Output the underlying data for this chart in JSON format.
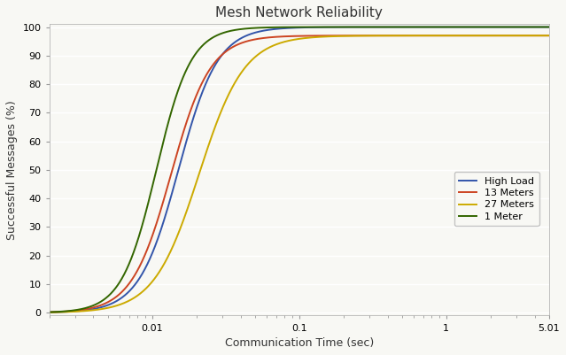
{
  "title": "Mesh Network Reliability",
  "xlabel": "Communication Time (sec)",
  "ylabel": "Successful Messages (%)",
  "xlim": [
    0.002,
    5.01
  ],
  "ylim": [
    -1,
    101
  ],
  "yticks": [
    0,
    10,
    20,
    30,
    40,
    50,
    60,
    70,
    80,
    90,
    100
  ],
  "series": [
    {
      "label": "High Load",
      "color": "#3355aa",
      "plateau": 100,
      "midpoint_log": -1.82,
      "steepness": 7.5
    },
    {
      "label": "13 Meters",
      "color": "#cc4422",
      "plateau": 97,
      "midpoint_log": -1.87,
      "steepness": 7.5
    },
    {
      "label": "27 Meters",
      "color": "#ccaa00",
      "plateau": 97,
      "midpoint_log": -1.68,
      "steepness": 6.5
    },
    {
      "label": "1 Meter",
      "color": "#336600",
      "plateau": 100,
      "midpoint_log": -1.97,
      "steepness": 8.5
    }
  ],
  "background_color": "#f8f8f4",
  "grid_color": "#ffffff",
  "title_fontsize": 11,
  "label_fontsize": 9,
  "tick_fontsize": 8,
  "legend_fontsize": 8
}
